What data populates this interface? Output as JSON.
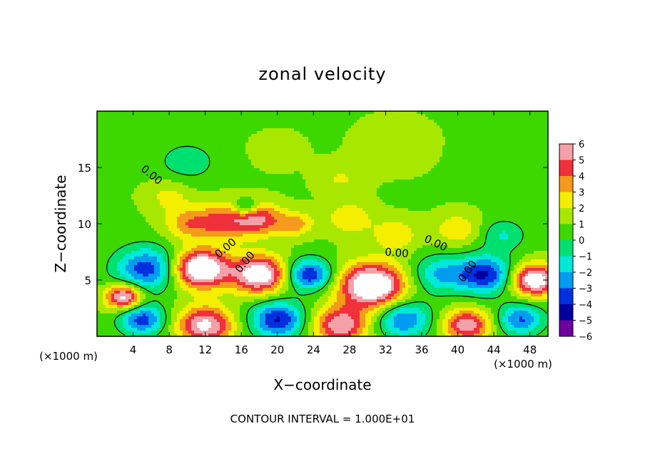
{
  "chart_data": {
    "type": "heatmap",
    "title": "zonal velocity",
    "xlabel": "X−coordinate",
    "ylabel": "Z−coordinate",
    "x_unit": "(×1000 m)",
    "y_unit": "(×1000 m)",
    "xlim": [
      0,
      50
    ],
    "ylim": [
      0,
      20
    ],
    "x_ticks": [
      4,
      8,
      12,
      16,
      20,
      24,
      28,
      32,
      36,
      40,
      44,
      48
    ],
    "y_ticks": [
      5,
      10,
      15
    ],
    "colorbar": {
      "ticks": [
        "6",
        "5",
        "4",
        "3",
        "2",
        "1",
        "0",
        "−1",
        "−2",
        "−3",
        "−4",
        "−5",
        "−6"
      ],
      "range": [
        -6,
        6
      ],
      "colors": [
        "#f4a0a8",
        "#f0303a",
        "#f59a1c",
        "#f4ee00",
        "#a8e800",
        "#3cd800",
        "#00e070",
        "#00e8d8",
        "#009cf0",
        "#0030e0",
        "#0000a0",
        "#70009c"
      ]
    },
    "contour_labels": [
      "0.00",
      "0.00",
      "0.00",
      "0.00",
      "0.00",
      "0.00"
    ],
    "cells": [
      {
        "x": 5.5,
        "z": 6.0,
        "r": 3.5,
        "v": -4.5
      },
      {
        "x": 11.5,
        "z": 6.0,
        "r": 3.0,
        "v": 7.5
      },
      {
        "x": 3.0,
        "z": 3.5,
        "r": 2.0,
        "v": 6.0
      },
      {
        "x": 18.0,
        "z": 5.5,
        "r": 3.0,
        "v": 6.5
      },
      {
        "x": 23.5,
        "z": 5.5,
        "r": 2.5,
        "v": -5.0
      },
      {
        "x": 30.5,
        "z": 4.5,
        "r": 3.5,
        "v": 7.5
      },
      {
        "x": 38.0,
        "z": 5.5,
        "r": 3.0,
        "v": -3.0
      },
      {
        "x": 43.0,
        "z": 5.5,
        "r": 3.0,
        "v": -5.0
      },
      {
        "x": 48.5,
        "z": 5.0,
        "r": 2.5,
        "v": 6.5
      },
      {
        "x": 5.0,
        "z": 1.5,
        "r": 2.5,
        "v": -4.5
      },
      {
        "x": 12.0,
        "z": 1.0,
        "r": 3.0,
        "v": 5.5
      },
      {
        "x": 20.0,
        "z": 1.5,
        "r": 3.0,
        "v": -5.0
      },
      {
        "x": 27.0,
        "z": 1.0,
        "r": 3.0,
        "v": 5.0
      },
      {
        "x": 34.0,
        "z": 1.5,
        "r": 3.0,
        "v": -4.0
      },
      {
        "x": 41.0,
        "z": 1.0,
        "r": 2.5,
        "v": 5.0
      },
      {
        "x": 47.0,
        "z": 1.5,
        "r": 2.5,
        "v": -4.0
      },
      {
        "x": 14.0,
        "z": 10.2,
        "r": 3.0,
        "v": 3.5
      },
      {
        "x": 18.0,
        "z": 10.4,
        "r": 2.5,
        "v": 4.0
      },
      {
        "x": 10.0,
        "z": 10.0,
        "r": 2.5,
        "v": 2.5
      },
      {
        "x": 16.5,
        "z": 11.5,
        "r": 1.3,
        "v": -3.0
      },
      {
        "x": 22.0,
        "z": 10.0,
        "r": 2.0,
        "v": 2.5
      },
      {
        "x": 28.0,
        "z": 10.5,
        "r": 2.5,
        "v": 2.0
      },
      {
        "x": 33.0,
        "z": 9.0,
        "r": 2.5,
        "v": 2.0
      },
      {
        "x": 40.0,
        "z": 9.5,
        "r": 2.5,
        "v": 2.0
      },
      {
        "x": 45.0,
        "z": 9.0,
        "r": 2.5,
        "v": -2.0
      },
      {
        "x": 10.0,
        "z": 15.5,
        "r": 3.5,
        "v": -1.5
      },
      {
        "x": 20.0,
        "z": 16.5,
        "r": 3.0,
        "v": 0.5
      },
      {
        "x": 33.0,
        "z": 17.0,
        "r": 4.0,
        "v": 0.8
      },
      {
        "x": 44.0,
        "z": 15.5,
        "r": 3.5,
        "v": -0.5
      },
      {
        "x": 27.0,
        "z": 14.0,
        "r": 2.5,
        "v": 1.2
      },
      {
        "x": 8.0,
        "z": 12.5,
        "r": 2.5,
        "v": 1.5
      }
    ]
  },
  "footer": {
    "contour_interval": "CONTOUR INTERVAL = 1.000E+01"
  }
}
